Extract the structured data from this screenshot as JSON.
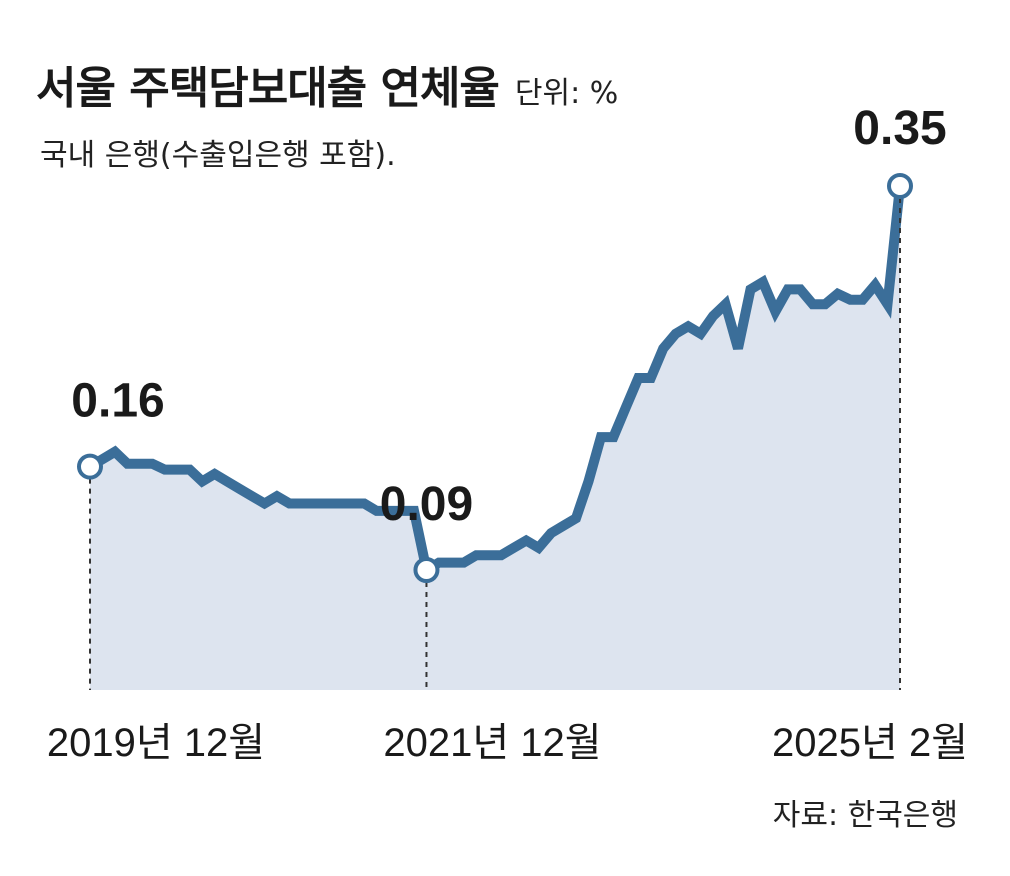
{
  "header": {
    "title": "서울 주택담보대출 연체율",
    "unit": "단위: %",
    "subtitle": "국내 은행(수출입은행 포함)."
  },
  "footer": {
    "source": "자료: 한국은행"
  },
  "colors": {
    "line": "#3b6e99",
    "area": "#dde4ef",
    "marker_fill": "#ffffff",
    "text": "#1a1a1a"
  },
  "chart_data": {
    "type": "area",
    "title": "서울 주택담보대출 연체율",
    "ylabel": "",
    "xlabel": "",
    "grid": false,
    "legend": "none",
    "x_ticks": [
      "2019년 12월",
      "2021년 12월",
      "2025년 2월"
    ],
    "ylim": [
      0,
      0.35
    ],
    "series": [
      {
        "values": [
          0.16,
          0.165,
          0.17,
          0.162,
          0.162,
          0.162,
          0.158,
          0.158,
          0.158,
          0.15,
          0.155,
          0.15,
          0.145,
          0.14,
          0.135,
          0.14,
          0.135,
          0.135,
          0.135,
          0.135,
          0.135,
          0.135,
          0.135,
          0.13,
          0.13,
          0.13,
          0.13,
          0.09,
          0.095,
          0.095,
          0.095,
          0.1,
          0.1,
          0.1,
          0.105,
          0.11,
          0.105,
          0.115,
          0.12,
          0.125,
          0.15,
          0.18,
          0.18,
          0.2,
          0.22,
          0.22,
          0.24,
          0.25,
          0.255,
          0.25,
          0.262,
          0.27,
          0.24,
          0.28,
          0.285,
          0.265,
          0.28,
          0.28,
          0.27,
          0.27,
          0.277,
          0.273,
          0.273,
          0.283,
          0.27,
          0.35
        ],
        "highlights": [
          {
            "index": 0,
            "label": "0.16"
          },
          {
            "index": 27,
            "label": "0.09"
          },
          {
            "index": 65,
            "label": "0.35"
          }
        ]
      }
    ]
  }
}
